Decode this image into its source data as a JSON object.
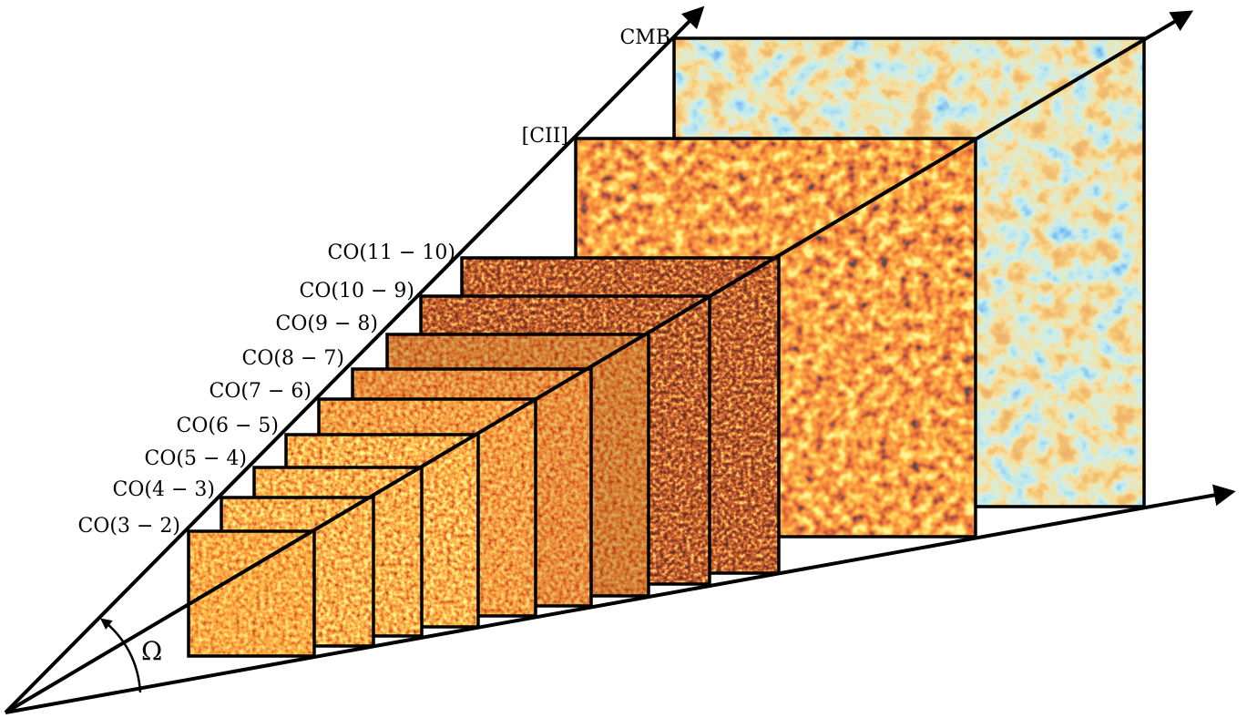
{
  "labels": {
    "cmb": "CMB",
    "cii": "[CII]",
    "co_11_10": "CO(11 − 10)",
    "co_10_9": "CO(10 − 9)",
    "co_9_8": "CO(9 − 8)",
    "co_8_7": "CO(8 − 7)",
    "co_7_6": "CO(7 − 6)",
    "co_6_5": "CO(6 − 5)",
    "co_5_4": "CO(5 − 4)",
    "co_4_3": "CO(4 − 3)",
    "co_3_2": "CO(3 − 2)",
    "omega": "Ω"
  },
  "colors": {
    "cmb_base": "#8fc8dc",
    "cmb_warm": "#e0883a",
    "cmb_cold": "#1f5fd0",
    "line_bright": "#ff7a12",
    "line_dark": "#2a0a04",
    "line_spot": "#ffe24a",
    "cii_base": "#e0400e"
  }
}
